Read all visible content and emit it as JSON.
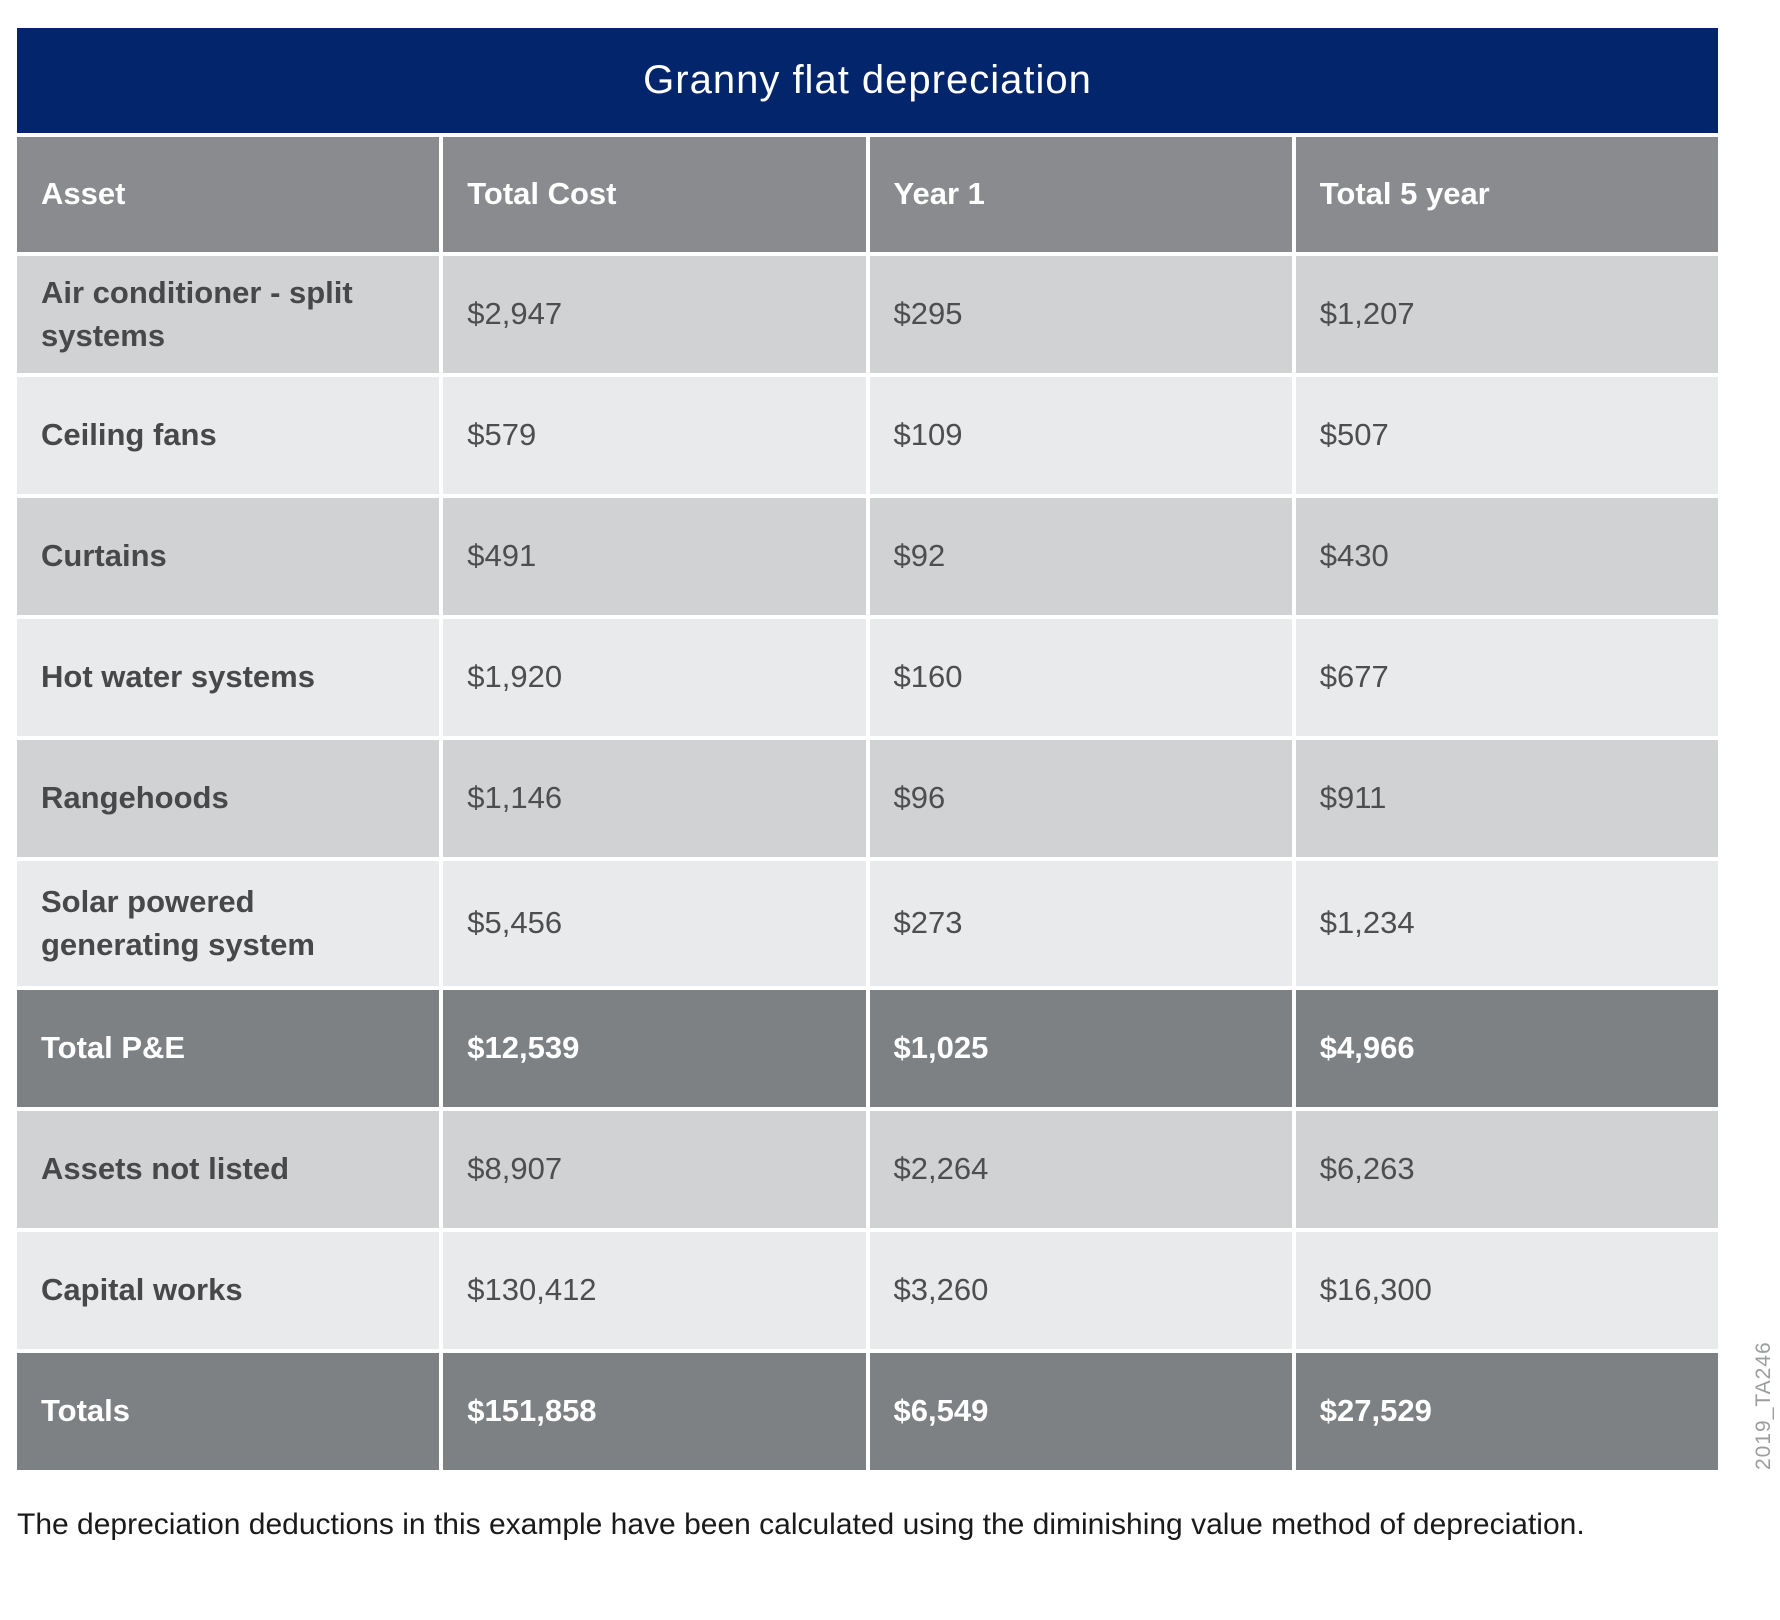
{
  "page": {
    "title": "Granny flat depreciation",
    "footer": "The depreciation deductions in this example have been calculated using the diminishing value method of depreciation.",
    "watermark": "2019_TA246"
  },
  "table": {
    "columns": [
      "Asset",
      "Total Cost",
      "Year 1",
      "Total 5 year"
    ],
    "rows": [
      {
        "style": "data-dark",
        "cells": [
          "Air conditioner - split systems",
          "$2,947",
          "$295",
          "$1,207"
        ]
      },
      {
        "style": "data-light",
        "cells": [
          "Ceiling fans",
          "$579",
          "$109",
          "$507"
        ]
      },
      {
        "style": "data-dark",
        "cells": [
          "Curtains",
          "$491",
          "$92",
          "$430"
        ]
      },
      {
        "style": "data-light",
        "cells": [
          "Hot water systems",
          "$1,920",
          "$160",
          "$677"
        ]
      },
      {
        "style": "data-dark",
        "cells": [
          "Rangehoods",
          "$1,146",
          "$96",
          "$911"
        ]
      },
      {
        "style": "data-light",
        "cells": [
          "Solar powered generating system",
          "$5,456",
          "$273",
          "$1,234"
        ]
      },
      {
        "style": "total",
        "cells": [
          "Total P&E",
          "$12,539",
          "$1,025",
          "$4,966"
        ]
      },
      {
        "style": "data-dark",
        "cells": [
          "Assets not listed",
          "$8,907",
          "$2,264",
          "$6,263"
        ]
      },
      {
        "style": "data-light",
        "cells": [
          "Capital works",
          "$130,412",
          "$3,260",
          "$16,300"
        ]
      },
      {
        "style": "total",
        "cells": [
          "Totals",
          "$151,858",
          "$6,549",
          "$27,529"
        ]
      }
    ]
  },
  "colors": {
    "title_navy": "#03256b",
    "header_gray": "#898b8e",
    "total_row_gray": "#7e8184",
    "row_dark_gray": "#d1d2d4",
    "row_light_gray": "#e9eaeb",
    "label_text": "#47484a",
    "value_text": "#4d4e50",
    "watermark_text": "#9b9da0"
  }
}
